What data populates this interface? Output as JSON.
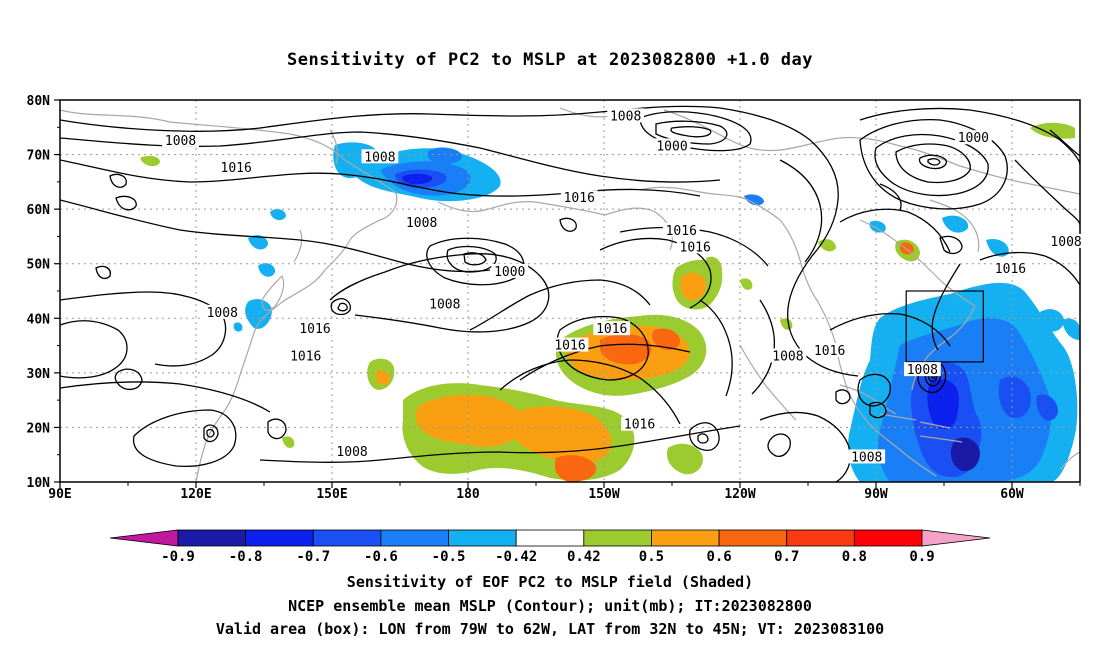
{
  "title": "Sensitivity of PC2 to MSLP at 2023082800 +1.0 day",
  "colors": {
    "contour": "#000000",
    "coast": "#a8a8a8",
    "grid": "#9a9a9a",
    "box": "#000000"
  },
  "map": {
    "lat_labels": [
      "80N",
      "70N",
      "60N",
      "50N",
      "40N",
      "30N",
      "20N",
      "10N"
    ],
    "lon_labels": [
      "90E",
      "120E",
      "150E",
      "180",
      "150W",
      "120W",
      "90W",
      "60W"
    ],
    "valid_box": {
      "lon_from": "79W",
      "lon_to": "62W",
      "lat_from": "32N",
      "lat_to": "45N"
    },
    "contour_labels": [
      {
        "text": "1008",
        "lon": 116,
        "lat": 72.5
      },
      {
        "text": "1016",
        "lon": 128,
        "lat": 67.5
      },
      {
        "text": "1008",
        "lon": 159,
        "lat": 69.5
      },
      {
        "text": "1016",
        "lon": -158,
        "lat": 62
      },
      {
        "text": "1008",
        "lon": -148,
        "lat": 77
      },
      {
        "text": "1000",
        "lon": -138,
        "lat": 71.5
      },
      {
        "text": "1000",
        "lon": -73,
        "lat": 73
      },
      {
        "text": "1016",
        "lon": -136,
        "lat": 56
      },
      {
        "text": "1016",
        "lon": -133,
        "lat": 53
      },
      {
        "text": "1008",
        "lon": -53,
        "lat": 54
      },
      {
        "text": "1016",
        "lon": -65,
        "lat": 49
      },
      {
        "text": "1008",
        "lon": 168,
        "lat": 57.5
      },
      {
        "text": "1000",
        "lon": -173,
        "lat": 48.5
      },
      {
        "text": "1008",
        "lon": 173,
        "lat": 42.5
      },
      {
        "text": "1008",
        "lon": 125,
        "lat": 41
      },
      {
        "text": "1016",
        "lon": 145,
        "lat": 38
      },
      {
        "text": "1016",
        "lon": 143,
        "lat": 33
      },
      {
        "text": "1016",
        "lon": -151,
        "lat": 38
      },
      {
        "text": "1016",
        "lon": -160,
        "lat": 35
      },
      {
        "text": "1008",
        "lon": -113,
        "lat": 33
      },
      {
        "text": "1016",
        "lon": -104,
        "lat": 34
      },
      {
        "text": "1008",
        "lon": -84,
        "lat": 30.5
      },
      {
        "text": "1016",
        "lon": -145,
        "lat": 20.5
      },
      {
        "text": "1008",
        "lon": 153,
        "lat": 15.5
      },
      {
        "text": "1008",
        "lon": -96,
        "lat": 14.5
      }
    ]
  },
  "colorbar": {
    "labels": [
      "-0.9",
      "-0.8",
      "-0.7",
      "-0.6",
      "-0.5",
      "-0.42",
      "0.42",
      "0.5",
      "0.6",
      "0.7",
      "0.8",
      "0.9"
    ],
    "colors": [
      "#c0189f",
      "#1b1aa7",
      "#0c21ee",
      "#1a4ff3",
      "#1a7ff6",
      "#14b0f1",
      "#ffffff",
      "#9ccb30",
      "#fb9f12",
      "#fa6711",
      "#fa3a12",
      "#ff0008",
      "#f4a2c7"
    ]
  },
  "captions": {
    "line1": "Sensitivity of EOF PC2 to MSLP field (Shaded)",
    "line2": "NCEP ensemble mean MSLP (Contour); unit(mb); IT:2023082800",
    "line3": "Valid area (box): LON from 79W to 62W, LAT from 32N to 45N; VT: 2023083100"
  }
}
